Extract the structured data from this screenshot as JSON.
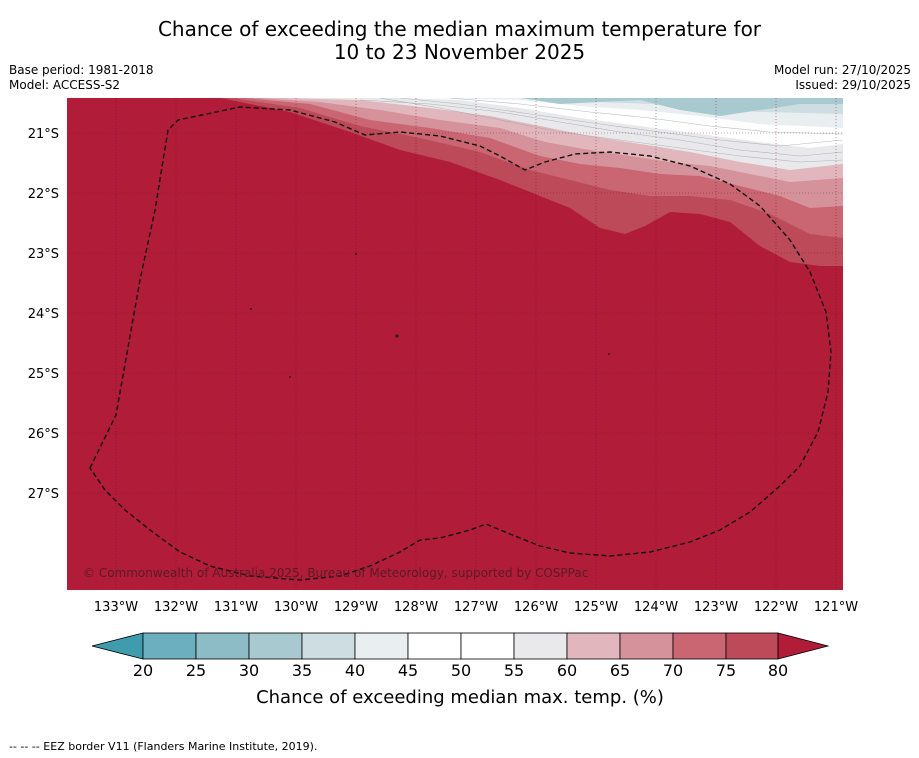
{
  "title": {
    "line1": "Chance of exceeding the median maximum temperature for",
    "line2": "10 to 23 November 2025"
  },
  "meta": {
    "base_period": "Base period: 1981-2018",
    "model": "Model: ACCESS-S2",
    "model_run": "Model run: 27/10/2025",
    "issued": "Issued: 29/10/2025"
  },
  "map": {
    "lat_labels": [
      "21°S",
      "22°S",
      "23°S",
      "24°S",
      "25°S",
      "26°S",
      "27°S"
    ],
    "lon_labels": [
      "133°W",
      "132°W",
      "131°W",
      "130°W",
      "129°W",
      "128°W",
      "127°W",
      "126°W",
      "125°W",
      "124°W",
      "123°W",
      "122°W",
      "121°W"
    ],
    "copyright": "© Commonwealth of Australia 2025, Bureau of Meteorology, supported by COSPPac",
    "dominant_category": "80+",
    "colors": {
      "c20": "#3f9cac",
      "c25": "#6cb0bf",
      "c30": "#8dbbc6",
      "c35": "#a9c9d0",
      "c40": "#cddde1",
      "c45": "#e9eff1",
      "c50": "#ffffff",
      "c55": "#ffffff",
      "c60": "#e9e9eb",
      "c65": "#e2b6bd",
      "c70": "#d5929b",
      "c75": "#c96672",
      "c80": "#bd4a58",
      "c80plus": "#b11c39"
    }
  },
  "colorbar": {
    "ticks": [
      "20",
      "25",
      "30",
      "35",
      "40",
      "45",
      "50",
      "55",
      "60",
      "65",
      "70",
      "75",
      "80"
    ],
    "label": "Chance of exceeding median max. temp. (%)"
  },
  "footer": "--  --  -- EEZ border V11 (Flanders Marine Institute, 2019)."
}
